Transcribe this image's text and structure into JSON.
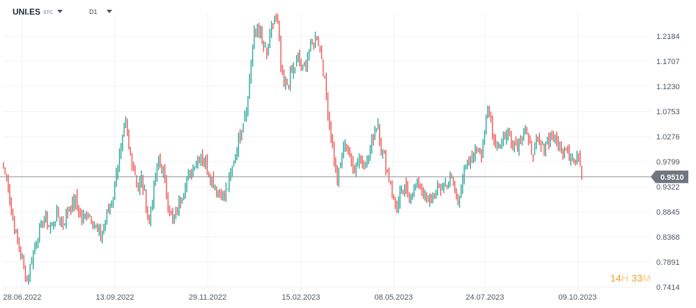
{
  "header": {
    "symbol": "UNI.ES",
    "exchange": "STC",
    "timeframe": "D1"
  },
  "countdown": {
    "hours": "14",
    "h_unit": "H",
    "minutes": "33",
    "m_unit": "M"
  },
  "colors": {
    "up": "#26a69a",
    "down": "#ef5350",
    "price_line": "#8a9099",
    "price_tag": "#707680",
    "grid": "#eef0f3",
    "countdown": "#f0a020"
  },
  "chart_data": {
    "type": "ohlc",
    "yticks": [
      "1.2184",
      "1.1707",
      "1.1230",
      "1.0753",
      "1.0276",
      "0.9799",
      "0.9322",
      "0.8845",
      "0.8368",
      "0.7891",
      "0.7414"
    ],
    "xticks": [
      "28.06.2022",
      "13.09.2022",
      "29.11.2022",
      "15.02.2023",
      "08.05.2023",
      "24.07.2023",
      "09.10.2023"
    ],
    "ylim": [
      0.7414,
      1.2661
    ],
    "current_price": "0.9510",
    "grid": true,
    "close_path": [
      [
        0,
        0.968
      ],
      [
        3,
        0.935
      ],
      [
        5,
        0.885
      ],
      [
        8,
        0.842
      ],
      [
        12,
        0.795
      ],
      [
        15,
        0.752
      ],
      [
        18,
        0.795
      ],
      [
        22,
        0.838
      ],
      [
        26,
        0.87
      ],
      [
        30,
        0.855
      ],
      [
        34,
        0.88
      ],
      [
        38,
        0.862
      ],
      [
        42,
        0.895
      ],
      [
        46,
        0.905
      ],
      [
        50,
        0.87
      ],
      [
        54,
        0.885
      ],
      [
        58,
        0.86
      ],
      [
        62,
        0.838
      ],
      [
        66,
        0.88
      ],
      [
        70,
        0.91
      ],
      [
        72,
        0.965
      ],
      [
        75,
        1.005
      ],
      [
        78,
        1.05
      ],
      [
        80,
        1.0
      ],
      [
        83,
        0.975
      ],
      [
        86,
        0.925
      ],
      [
        88,
        0.95
      ],
      [
        91,
        0.9
      ],
      [
        93,
        0.865
      ],
      [
        96,
        0.93
      ],
      [
        99,
        0.985
      ],
      [
        102,
        0.958
      ],
      [
        105,
        0.9
      ],
      [
        108,
        0.862
      ],
      [
        111,
        0.89
      ],
      [
        114,
        0.92
      ],
      [
        117,
        0.948
      ],
      [
        120,
        0.96
      ],
      [
        123,
        0.985
      ],
      [
        126,
        0.995
      ],
      [
        129,
        0.975
      ],
      [
        132,
        0.95
      ],
      [
        135,
        0.932
      ],
      [
        138,
        0.92
      ],
      [
        141,
        0.915
      ],
      [
        144,
        0.94
      ],
      [
        147,
        0.98
      ],
      [
        150,
        1.02
      ],
      [
        153,
        1.06
      ],
      [
        156,
        1.1
      ],
      [
        158,
        1.175
      ],
      [
        160,
        1.22
      ],
      [
        162,
        1.235
      ],
      [
        165,
        1.21
      ],
      [
        168,
        1.18
      ],
      [
        171,
        1.23
      ],
      [
        173,
        1.255
      ],
      [
        175,
        1.24
      ],
      [
        177,
        1.16
      ],
      [
        179,
        1.12
      ],
      [
        182,
        1.135
      ],
      [
        185,
        1.155
      ],
      [
        188,
        1.175
      ],
      [
        191,
        1.155
      ],
      [
        194,
        1.18
      ],
      [
        197,
        1.205
      ],
      [
        200,
        1.22
      ],
      [
        203,
        1.18
      ],
      [
        205,
        1.13
      ],
      [
        207,
        1.075
      ],
      [
        209,
        1.03
      ],
      [
        211,
        0.985
      ],
      [
        213,
        0.94
      ],
      [
        215,
        0.975
      ],
      [
        218,
        1.02
      ],
      [
        221,
        0.985
      ],
      [
        224,
        0.965
      ],
      [
        227,
        0.99
      ],
      [
        230,
        0.975
      ],
      [
        233,
        0.99
      ],
      [
        236,
        1.03
      ],
      [
        239,
        1.055
      ],
      [
        241,
        1.0
      ],
      [
        243,
        0.99
      ],
      [
        245,
        0.96
      ],
      [
        247,
        0.94
      ],
      [
        249,
        0.905
      ],
      [
        251,
        0.89
      ],
      [
        253,
        0.915
      ],
      [
        256,
        0.925
      ],
      [
        259,
        0.92
      ],
      [
        262,
        0.932
      ],
      [
        265,
        0.94
      ],
      [
        268,
        0.92
      ],
      [
        271,
        0.9
      ],
      [
        274,
        0.915
      ],
      [
        277,
        0.925
      ],
      [
        280,
        0.932
      ],
      [
        283,
        0.94
      ],
      [
        286,
        0.945
      ],
      [
        288,
        0.925
      ],
      [
        290,
        0.905
      ],
      [
        292,
        0.935
      ],
      [
        294,
        0.96
      ],
      [
        297,
        0.975
      ],
      [
        300,
        0.995
      ],
      [
        303,
        1.01
      ],
      [
        305,
        1.0
      ],
      [
        307,
        1.04
      ],
      [
        309,
        1.075
      ],
      [
        311,
        1.055
      ],
      [
        313,
        1.02
      ],
      [
        316,
        1.01
      ],
      [
        319,
        1.025
      ],
      [
        322,
        1.035
      ],
      [
        325,
        1.02
      ],
      [
        328,
        1.015
      ],
      [
        331,
        1.035
      ],
      [
        333,
        1.045
      ],
      [
        335,
        1.01
      ],
      [
        338,
        1.0
      ],
      [
        341,
        1.015
      ],
      [
        344,
        1.005
      ],
      [
        347,
        1.02
      ],
      [
        350,
        1.03
      ],
      [
        353,
        1.015
      ],
      [
        356,
        1.0
      ],
      [
        359,
        1.01
      ],
      [
        362,
        0.99
      ],
      [
        365,
        0.978
      ],
      [
        367,
        0.998
      ],
      [
        369,
        0.951
      ]
    ]
  }
}
